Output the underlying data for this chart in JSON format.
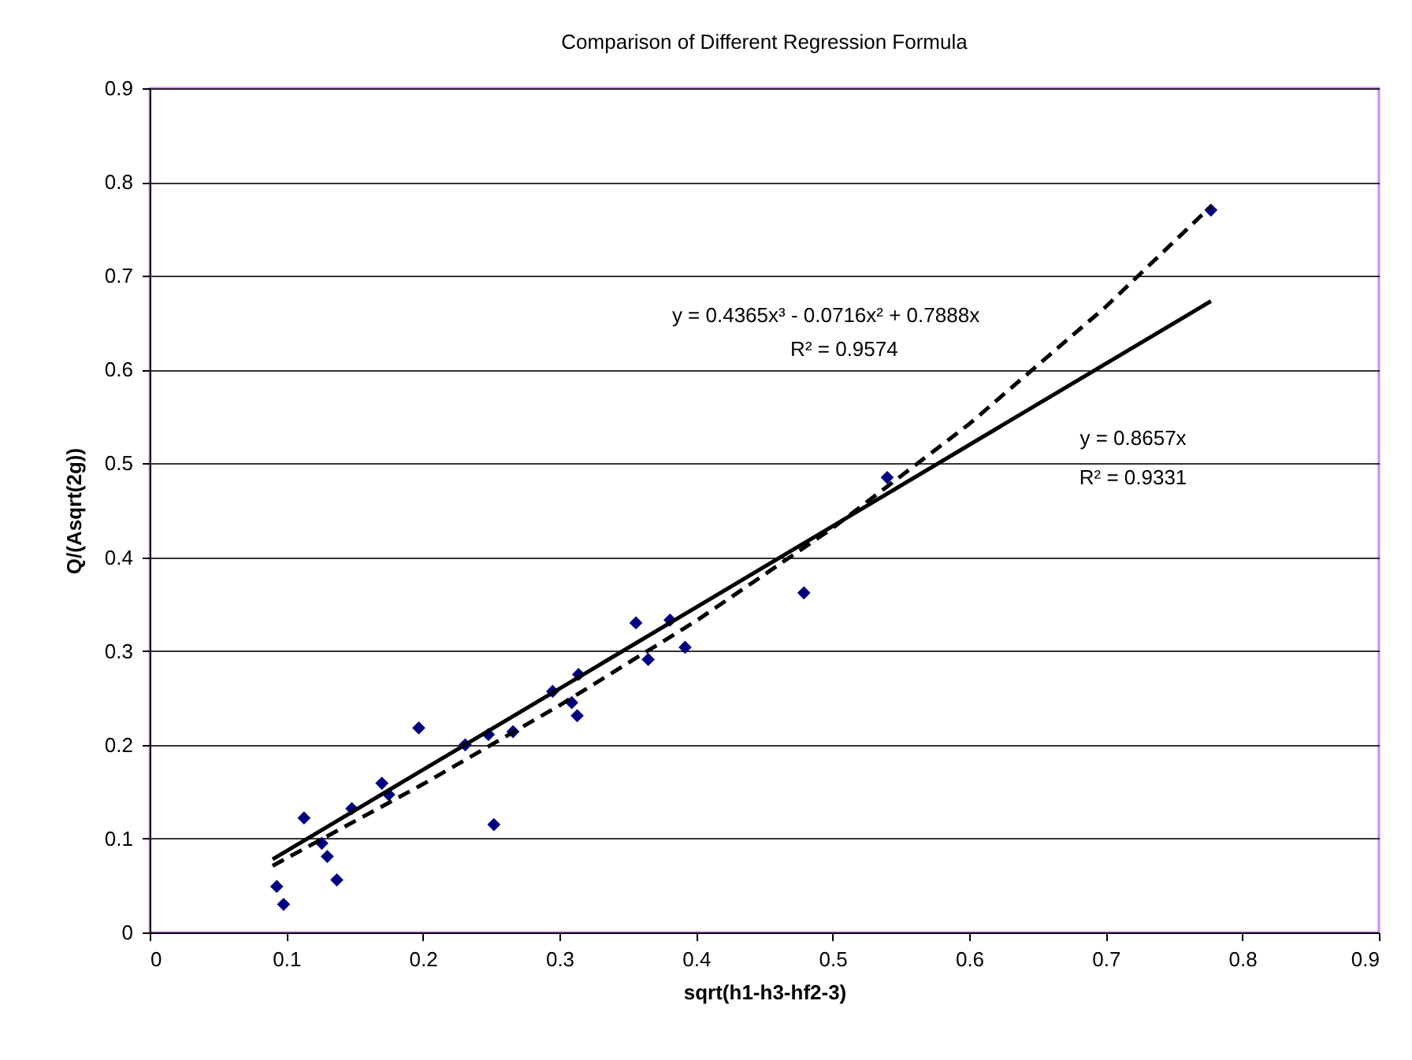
{
  "chart_data": {
    "type": "scatter",
    "title": "Comparison of Different Regression Formula",
    "xlabel": "sqrt(h1-h3-hf2-3)",
    "ylabel": "Q/(Asqrt(2g))",
    "xlim": [
      0,
      0.9
    ],
    "ylim": [
      0,
      0.9
    ],
    "xticks": [
      0,
      0.1,
      0.2,
      0.3,
      0.4,
      0.5,
      0.6,
      0.7,
      0.8,
      0.9
    ],
    "yticks": [
      0,
      0.1,
      0.2,
      0.3,
      0.4,
      0.5,
      0.6,
      0.7,
      0.8,
      0.9
    ],
    "grid": "y",
    "series": [
      {
        "marker": "diamond",
        "color": "#000080",
        "x": [
          0.093,
          0.098,
          0.113,
          0.126,
          0.13,
          0.137,
          0.148,
          0.17,
          0.175,
          0.197,
          0.231,
          0.248,
          0.252,
          0.266,
          0.295,
          0.309,
          0.313,
          0.314,
          0.356,
          0.365,
          0.381,
          0.392,
          0.479,
          0.54,
          0.777
        ],
        "values": [
          0.049,
          0.03,
          0.122,
          0.095,
          0.081,
          0.056,
          0.132,
          0.159,
          0.147,
          0.218,
          0.2,
          0.211,
          0.115,
          0.214,
          0.257,
          0.245,
          0.231,
          0.275,
          0.33,
          0.291,
          0.333,
          0.304,
          0.362,
          0.485,
          0.77
        ]
      },
      {
        "type": "line",
        "color": "#000000",
        "line_style": "solid",
        "x": [
          0.09,
          0.777
        ],
        "values": [
          0.078,
          0.673
        ]
      },
      {
        "type": "line",
        "color": "#000000",
        "line_style": "dashed",
        "x": [
          0.09,
          0.2,
          0.3,
          0.4,
          0.5,
          0.6,
          0.7,
          0.777
        ],
        "values": [
          0.071,
          0.158,
          0.242,
          0.332,
          0.431,
          0.542,
          0.667,
          0.774
        ]
      }
    ],
    "annotations": [
      "y = 0.4365x³ - 0.0716x² + 0.7888x",
      "R² = 0.9574",
      "y = 0.8657x",
      "R² = 0.9331"
    ]
  }
}
